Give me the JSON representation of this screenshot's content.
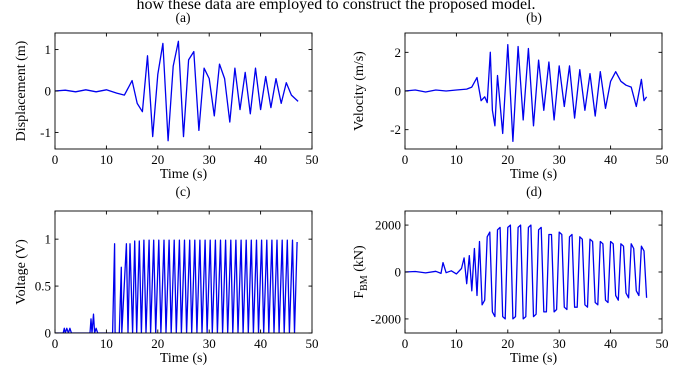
{
  "figure": {
    "caption_fragment": "how these data are employed to construct the proposed model."
  },
  "colors": {
    "series": "#0000ee",
    "axes": "#000000"
  },
  "chart_data": [
    {
      "id": "a",
      "panel_label": "(a)",
      "type": "line",
      "xlabel": "Time (s)",
      "ylabel": "Displacement (m)",
      "xlim": [
        0,
        50
      ],
      "ylim": [
        -1.4,
        1.4
      ],
      "xticks": [
        0,
        10,
        20,
        30,
        40,
        50
      ],
      "yticks": [
        -1,
        0,
        1
      ],
      "grid": false,
      "series": [
        {
          "x": [
            0,
            2,
            4,
            6,
            8,
            10,
            12,
            13.5,
            15,
            16,
            17,
            18,
            19,
            20,
            21,
            22,
            23,
            24,
            25,
            26,
            27,
            28,
            29,
            30,
            31,
            32,
            33,
            34,
            35,
            36,
            37,
            38,
            39,
            40,
            41,
            42,
            43,
            44,
            45,
            46,
            47.3
          ],
          "y": [
            0,
            0.02,
            -0.02,
            0.03,
            -0.02,
            0.03,
            -0.05,
            -0.1,
            0.25,
            -0.3,
            -0.5,
            0.85,
            -1.1,
            0.4,
            1.15,
            -1.2,
            0.6,
            1.2,
            -1.1,
            0.75,
            0.95,
            -0.95,
            0.55,
            0.3,
            -0.6,
            0.65,
            0.3,
            -0.75,
            0.55,
            -0.45,
            0.45,
            -0.55,
            0.55,
            -0.45,
            0.35,
            -0.4,
            0.3,
            -0.3,
            0.2,
            -0.1,
            -0.25
          ]
        }
      ]
    },
    {
      "id": "b",
      "panel_label": "(b)",
      "type": "line",
      "xlabel": "Time (s)",
      "ylabel": "Velocity (m/s)",
      "xlim": [
        0,
        50
      ],
      "ylim": [
        -3,
        3
      ],
      "xticks": [
        0,
        10,
        20,
        30,
        40,
        50
      ],
      "yticks": [
        -2,
        0,
        2
      ],
      "grid": false,
      "series": [
        {
          "x": [
            0,
            2,
            4,
            6,
            8,
            10,
            12,
            13,
            14,
            14.8,
            15.5,
            16,
            16.6,
            17,
            17.5,
            18,
            19,
            20,
            21,
            22,
            23,
            24,
            25,
            26,
            27,
            28,
            29,
            30,
            31,
            32,
            33,
            34,
            35,
            36,
            37,
            38,
            39,
            40,
            41,
            42,
            43,
            44,
            45,
            46,
            46.5,
            47
          ],
          "y": [
            0,
            0.05,
            -0.05,
            0.05,
            0,
            0.05,
            0.1,
            0.2,
            0.7,
            -0.5,
            -0.3,
            -0.6,
            2.0,
            -1.0,
            -1.8,
            0.8,
            -2.2,
            2.4,
            -2.6,
            2.3,
            -1.5,
            2.2,
            -1.8,
            1.6,
            -1.0,
            1.5,
            -1.5,
            1.3,
            -0.8,
            1.3,
            -1.4,
            1.1,
            -1.0,
            0.9,
            -1.3,
            1.0,
            -0.9,
            0.5,
            1.0,
            0.5,
            0.3,
            0.2,
            -0.8,
            0.6,
            -0.5,
            -0.3
          ]
        }
      ]
    },
    {
      "id": "c",
      "panel_label": "(c)",
      "type": "line",
      "xlabel": "Time (s)",
      "ylabel": "Voltage (V)",
      "xlim": [
        0,
        50
      ],
      "ylim": [
        0,
        1.3
      ],
      "xticks": [
        0,
        10,
        20,
        30,
        40,
        50
      ],
      "yticks": [
        0,
        0.5,
        1
      ],
      "grid": false,
      "series": [
        {
          "x": [
            0,
            1.6,
            1.8,
            2.0,
            2.3,
            2.6,
            2.9,
            3.2,
            3.5,
            6,
            6.8,
            7.0,
            7.2,
            7.5,
            7.7,
            8.0,
            8.3,
            10,
            11.2,
            11.6,
            11.7,
            12.5,
            12.9,
            13.0,
            13.9,
            14.2,
            14.6,
            15.1,
            15.5,
            15.9,
            16.4,
            16.8,
            17.3,
            17.7,
            18.3,
            18.6,
            19.2,
            19.6,
            20.2,
            20.6,
            21.2,
            21.6,
            22.2,
            22.6,
            23.2,
            23.6,
            24.2,
            24.6,
            25.2,
            25.6,
            26.2,
            26.6,
            27.2,
            27.6,
            28.2,
            28.6,
            29.2,
            29.6,
            30.2,
            30.6,
            31.2,
            31.6,
            32.2,
            32.6,
            33.2,
            33.6,
            34.2,
            34.6,
            35.2,
            35.6,
            36.2,
            36.6,
            37.2,
            37.6,
            38.2,
            38.6,
            39.2,
            39.6,
            40.2,
            40.6,
            41.2,
            41.6,
            42.2,
            42.6,
            43.2,
            43.6,
            44.2,
            44.6,
            45.2,
            45.6,
            46.2,
            46.6,
            47.1
          ],
          "y": [
            0,
            0,
            0.05,
            0,
            0.05,
            0,
            0.05,
            0,
            0,
            0,
            0,
            0.15,
            0,
            0.2,
            0,
            0.05,
            0,
            0,
            0,
            0.95,
            0,
            0,
            0.7,
            0,
            0.95,
            0,
            0.95,
            0,
            0.98,
            0,
            0.98,
            0,
            0.99,
            0,
            0.99,
            0,
            0.99,
            0,
            0.99,
            0,
            0.99,
            0,
            0.99,
            0,
            0.99,
            0,
            0.99,
            0,
            0.99,
            0,
            0.99,
            0,
            0.99,
            0,
            0.99,
            0,
            0.99,
            0,
            0.99,
            0,
            0.99,
            0,
            0.99,
            0,
            0.99,
            0,
            0.99,
            0,
            0.99,
            0,
            0.99,
            0,
            0.99,
            0,
            0.99,
            0,
            0.99,
            0,
            0.99,
            0,
            0.99,
            0,
            0.99,
            0,
            0.99,
            0,
            0.99,
            0,
            0.99,
            0,
            0.99,
            0,
            0.97
          ]
        }
      ]
    },
    {
      "id": "d",
      "panel_label": "(d)",
      "type": "line",
      "xlabel": "Time (s)",
      "ylabel": "F_BM (kN)",
      "xlim": [
        0,
        50
      ],
      "ylim": [
        -2600,
        2600
      ],
      "xticks": [
        0,
        10,
        20,
        30,
        40,
        50
      ],
      "yticks": [
        -2000,
        0,
        2000
      ],
      "grid": false,
      "series": [
        {
          "x": [
            0,
            2,
            4,
            6,
            7,
            7.4,
            8,
            9,
            10,
            11,
            11.5,
            12,
            12.5,
            13,
            13.5,
            14,
            14.5,
            15,
            15.5,
            16,
            16.5,
            17,
            17.5,
            18,
            18.5,
            19,
            19.5,
            20,
            20.5,
            21,
            21.5,
            22,
            22.5,
            23,
            23.5,
            24,
            24.5,
            25,
            25.5,
            26,
            26.5,
            27,
            27.5,
            28,
            28.5,
            29,
            29.5,
            30,
            30.5,
            31,
            31.5,
            32,
            32.5,
            33,
            33.5,
            34,
            34.5,
            35,
            35.5,
            36,
            36.5,
            37,
            37.5,
            38,
            38.5,
            39,
            39.5,
            40,
            40.5,
            41,
            41.5,
            42,
            42.5,
            43,
            43.5,
            44,
            44.5,
            45,
            45.5,
            46,
            46.5,
            47
          ],
          "y": [
            0,
            20,
            -40,
            30,
            -60,
            400,
            -30,
            50,
            -80,
            150,
            600,
            -500,
            700,
            -800,
            1000,
            -1000,
            1300,
            -1400,
            -1200,
            1500,
            1700,
            -1700,
            -1900,
            1800,
            1900,
            -1900,
            -2000,
            1900,
            2000,
            -2000,
            -1900,
            1900,
            2000,
            -2000,
            -1900,
            1900,
            2000,
            -1900,
            -1800,
            1800,
            1900,
            -1700,
            -1700,
            1600,
            1600,
            -1700,
            -1600,
            1700,
            1600,
            -1500,
            -1600,
            1500,
            1600,
            -1500,
            -1500,
            1500,
            1400,
            -1400,
            -1500,
            1400,
            1300,
            -1300,
            -1400,
            1300,
            1200,
            -1200,
            -1300,
            1300,
            1200,
            -1000,
            -1200,
            1200,
            1100,
            -900,
            -1100,
            1200,
            1000,
            -800,
            -1000,
            1100,
            900,
            -1100
          ]
        }
      ]
    }
  ]
}
